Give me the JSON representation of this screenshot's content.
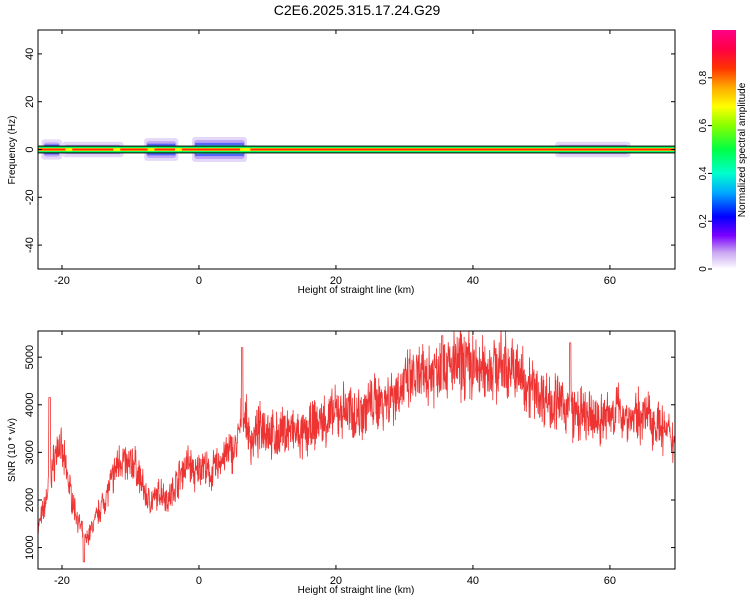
{
  "title": "C2E6.2025.315.17.24.G29",
  "chart_data": [
    {
      "type": "heatmap",
      "xlabel": "Height of straight line (km)",
      "ylabel": "Frequency (Hz)",
      "xlim": [
        -23.5,
        69.5
      ],
      "ylim": [
        -50,
        50
      ],
      "xticks": [
        -20,
        0,
        20,
        40,
        60
      ],
      "yticks": [
        -40,
        -20,
        0,
        20,
        40
      ],
      "band_center_hz": 0,
      "band_halfwidth_hz": 1,
      "colorbar": {
        "label": "Normalized spectral amplitude",
        "range": [
          0,
          1
        ],
        "ticks": [
          0.0,
          0.2,
          0.4,
          0.6,
          0.8
        ]
      },
      "spread_regions": [
        {
          "x_start": -23,
          "x_end": -20,
          "halfwidth_hz": 3
        },
        {
          "x_start": -20,
          "x_end": -11,
          "halfwidth_hz": 2
        },
        {
          "x_start": -8,
          "x_end": -3,
          "halfwidth_hz": 3.5
        },
        {
          "x_start": -1,
          "x_end": 7,
          "halfwidth_hz": 4
        },
        {
          "x_start": 52,
          "x_end": 63,
          "halfwidth_hz": 2
        }
      ]
    },
    {
      "type": "line",
      "xlabel": "Height of straight line (km)",
      "ylabel": "SNR (10 * v/v)",
      "xlim": [
        -23.5,
        69.5
      ],
      "ylim": [
        550,
        5550
      ],
      "xticks": [
        -20,
        0,
        20,
        40,
        60
      ],
      "yticks": [
        1000,
        2000,
        3000,
        4000,
        5000
      ],
      "line_color": "#ee3333",
      "series_profile": [
        [
          -23.5,
          1400
        ],
        [
          -22.5,
          1900
        ],
        [
          -21.5,
          2600
        ],
        [
          -20.5,
          3200
        ],
        [
          -19.5,
          2700
        ],
        [
          -18.5,
          2000
        ],
        [
          -17.5,
          1500
        ],
        [
          -16.5,
          1150
        ],
        [
          -15.5,
          1450
        ],
        [
          -14.5,
          1800
        ],
        [
          -13.5,
          2100
        ],
        [
          -12.5,
          2500
        ],
        [
          -11.5,
          2900
        ],
        [
          -10.5,
          2700
        ],
        [
          -9.5,
          2800
        ],
        [
          -8.5,
          2400
        ],
        [
          -7.5,
          2000
        ],
        [
          -6.5,
          2000
        ],
        [
          -5.5,
          2200
        ],
        [
          -4.5,
          2000
        ],
        [
          -3.5,
          2300
        ],
        [
          -2.5,
          2600
        ],
        [
          -1.5,
          2800
        ],
        [
          -0.5,
          2500
        ],
        [
          0.5,
          2800
        ],
        [
          1.5,
          2500
        ],
        [
          2.5,
          2700
        ],
        [
          3.5,
          2900
        ],
        [
          4.5,
          3000
        ],
        [
          5.5,
          3100
        ],
        [
          6.5,
          3900
        ],
        [
          7.5,
          3200
        ],
        [
          8.5,
          3400
        ],
        [
          9.5,
          3600
        ],
        [
          11,
          3300
        ],
        [
          13,
          3500
        ],
        [
          15,
          3300
        ],
        [
          17,
          3600
        ],
        [
          19,
          3700
        ],
        [
          21,
          3900
        ],
        [
          23,
          3800
        ],
        [
          25,
          4000
        ],
        [
          27,
          4100
        ],
        [
          29,
          4300
        ],
        [
          31,
          4500
        ],
        [
          33,
          4600
        ],
        [
          35,
          4800
        ],
        [
          37,
          4800
        ],
        [
          39,
          4900
        ],
        [
          41,
          4700
        ],
        [
          43,
          4800
        ],
        [
          45,
          4800
        ],
        [
          47,
          4600
        ],
        [
          49,
          4300
        ],
        [
          51,
          4100
        ],
        [
          53,
          4000
        ],
        [
          55,
          3800
        ],
        [
          57,
          3700
        ],
        [
          59,
          3700
        ],
        [
          61,
          3900
        ],
        [
          63,
          3700
        ],
        [
          65,
          3800
        ],
        [
          67,
          3600
        ],
        [
          69.5,
          3200
        ]
      ],
      "spikes": [
        [
          -21.8,
          4150
        ],
        [
          -16.8,
          700
        ],
        [
          6.3,
          5200
        ],
        [
          35.5,
          5450
        ],
        [
          54.2,
          5300
        ]
      ]
    }
  ]
}
